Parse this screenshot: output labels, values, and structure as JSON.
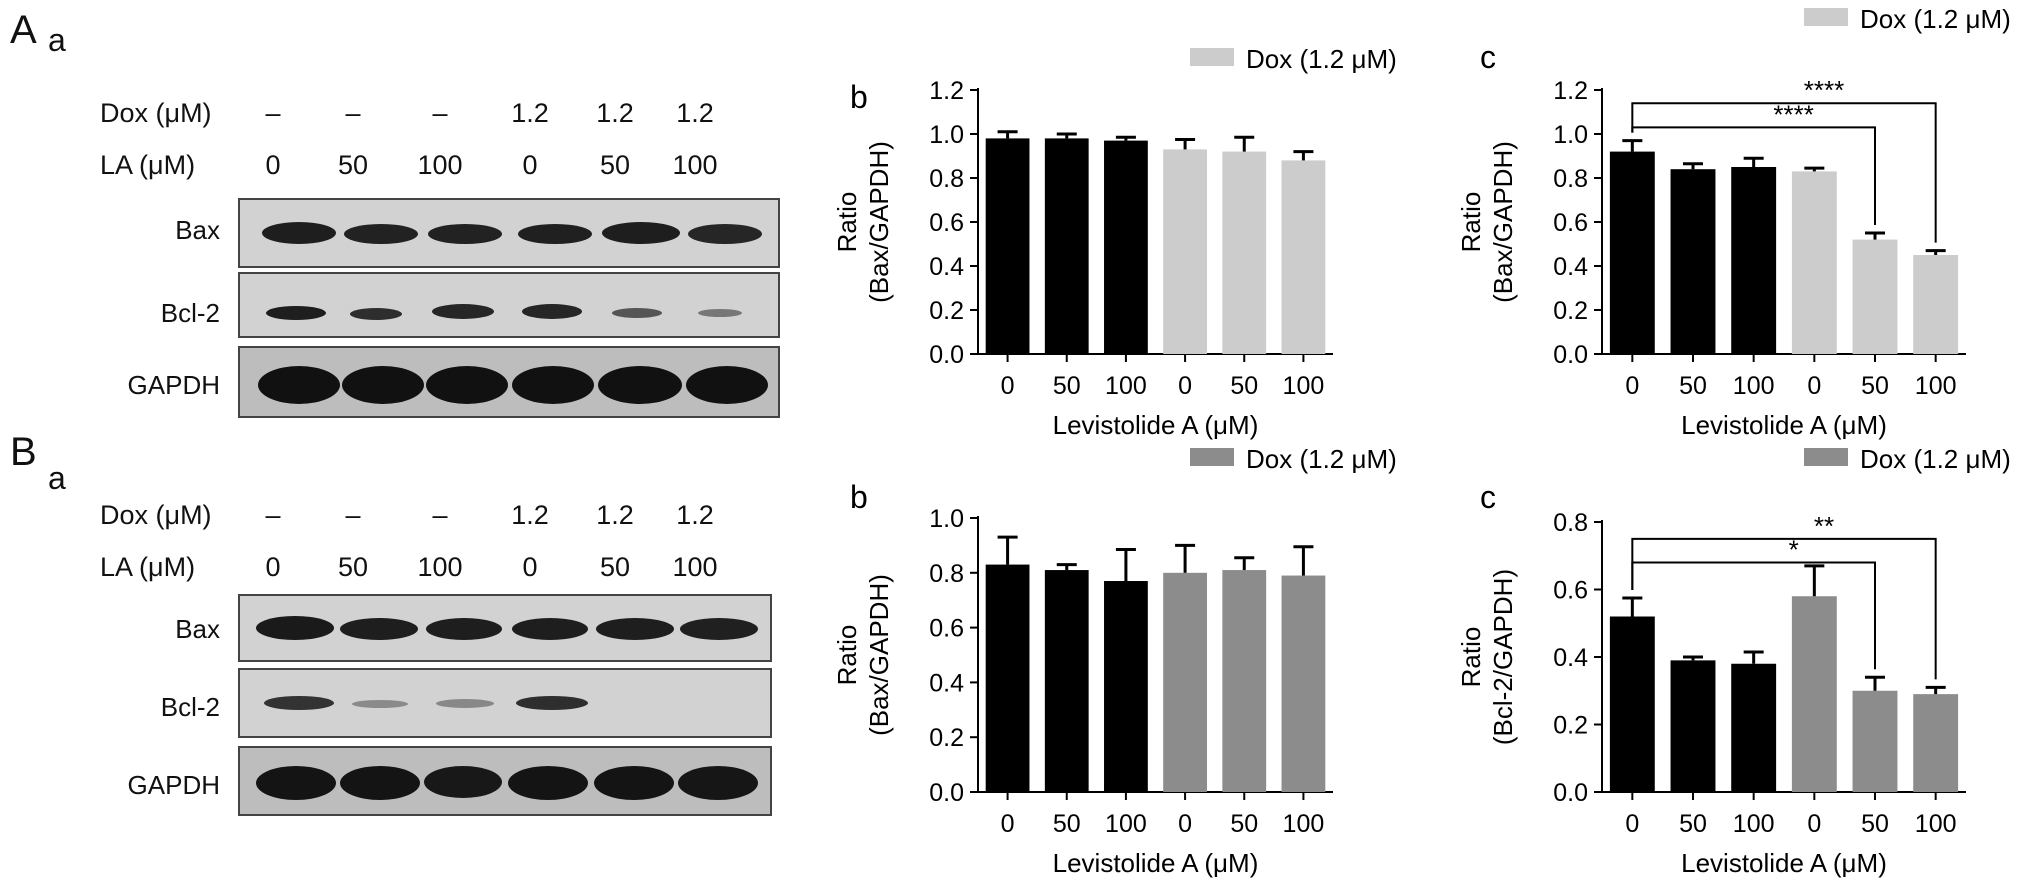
{
  "panels": {
    "A": {
      "letter": "A",
      "sub_a": "a",
      "dox_label": "Dox (μM)",
      "la_label": "LA (μM)",
      "dox_values": [
        "–",
        "–",
        "–",
        "1.2",
        "1.2",
        "1.2"
      ],
      "la_values": [
        "0",
        "50",
        "100",
        "0",
        "50",
        "100"
      ],
      "blots": [
        "Bax",
        "Bcl-2",
        "GAPDH"
      ]
    },
    "B": {
      "letter": "B",
      "sub_a": "a",
      "dox_label": "Dox (μM)",
      "la_label": "LA (μM)",
      "dox_values": [
        "–",
        "–",
        "–",
        "1.2",
        "1.2",
        "1.2"
      ],
      "la_values": [
        "0",
        "50",
        "100",
        "0",
        "50",
        "100"
      ],
      "blots": [
        "Bax",
        "Bcl-2",
        "GAPDH"
      ]
    }
  },
  "chart_data": [
    {
      "id": "Ab",
      "panel_label": "b",
      "type": "bar",
      "categories": [
        "0",
        "50",
        "100",
        "0",
        "50",
        "100"
      ],
      "values": [
        0.98,
        0.98,
        0.97,
        0.93,
        0.92,
        0.88
      ],
      "errors": [
        0.03,
        0.02,
        0.015,
        0.045,
        0.065,
        0.04
      ],
      "colors": [
        "#000000",
        "#000000",
        "#000000",
        "#cccccc",
        "#cccccc",
        "#cccccc"
      ],
      "legend": "Dox (1.2 μM)",
      "legend_color": "#cccccc",
      "xlabel": "Levistolide A (μM)",
      "ylabel_line1": "Ratio",
      "ylabel_line2": "(Bax/GAPDH)",
      "ylim": [
        0,
        1.2
      ],
      "yticks": [
        "0.0",
        "0.2",
        "0.4",
        "0.6",
        "0.8",
        "1.0",
        "1.2"
      ],
      "significance": []
    },
    {
      "id": "Ac",
      "panel_label": "c",
      "type": "bar",
      "categories": [
        "0",
        "50",
        "100",
        "0",
        "50",
        "100"
      ],
      "values": [
        0.92,
        0.84,
        0.85,
        0.83,
        0.52,
        0.45
      ],
      "errors": [
        0.05,
        0.025,
        0.04,
        0.015,
        0.03,
        0.02
      ],
      "colors": [
        "#000000",
        "#000000",
        "#000000",
        "#cccccc",
        "#cccccc",
        "#cccccc"
      ],
      "legend": "Dox (1.2 μM)",
      "legend_color": "#cccccc",
      "xlabel": "Levistolide A (μM)",
      "ylabel_line1": "Ratio",
      "ylabel_line2": "(Bax/GAPDH)",
      "ylim": [
        0,
        1.2
      ],
      "yticks": [
        "0.0",
        "0.2",
        "0.4",
        "0.6",
        "0.8",
        "1.0",
        "1.2"
      ],
      "significance": [
        {
          "from": 0,
          "to": 5,
          "y": 1.14,
          "label": "****"
        },
        {
          "from": 0,
          "to": 4,
          "y": 1.03,
          "label": "****"
        }
      ]
    },
    {
      "id": "Bb",
      "panel_label": "b",
      "type": "bar",
      "categories": [
        "0",
        "50",
        "100",
        "0",
        "50",
        "100"
      ],
      "values": [
        0.83,
        0.81,
        0.77,
        0.8,
        0.81,
        0.79
      ],
      "errors": [
        0.1,
        0.02,
        0.115,
        0.1,
        0.045,
        0.105
      ],
      "colors": [
        "#000000",
        "#000000",
        "#000000",
        "#8c8c8c",
        "#8c8c8c",
        "#8c8c8c"
      ],
      "legend": "Dox (1.2 μM)",
      "legend_color": "#8c8c8c",
      "xlabel": "Levistolide A (μM)",
      "ylabel_line1": "Ratio",
      "ylabel_line2": "(Bax/GAPDH)",
      "ylim": [
        0,
        1.0
      ],
      "yticks": [
        "0.0",
        "0.2",
        "0.4",
        "0.6",
        "0.8",
        "1.0"
      ],
      "significance": []
    },
    {
      "id": "Bc",
      "panel_label": "c",
      "type": "bar",
      "categories": [
        "0",
        "50",
        "100",
        "0",
        "50",
        "100"
      ],
      "values": [
        0.52,
        0.39,
        0.38,
        0.58,
        0.3,
        0.29
      ],
      "errors": [
        0.055,
        0.01,
        0.035,
        0.09,
        0.04,
        0.02
      ],
      "colors": [
        "#000000",
        "#000000",
        "#000000",
        "#8c8c8c",
        "#8c8c8c",
        "#8c8c8c"
      ],
      "legend": "Dox (1.2 μM)",
      "legend_color": "#8c8c8c",
      "xlabel": "Levistolide A (μM)",
      "ylabel_line1": "Ratio",
      "ylabel_line2": "(Bcl-2/GAPDH)",
      "ylim": [
        0,
        0.8
      ],
      "yticks": [
        "0.0",
        "0.2",
        "0.4",
        "0.6",
        "0.8"
      ],
      "significance": [
        {
          "from": 0,
          "to": 5,
          "y": 0.75,
          "label": "**"
        },
        {
          "from": 0,
          "to": 4,
          "y": 0.68,
          "label": "*"
        }
      ]
    }
  ]
}
